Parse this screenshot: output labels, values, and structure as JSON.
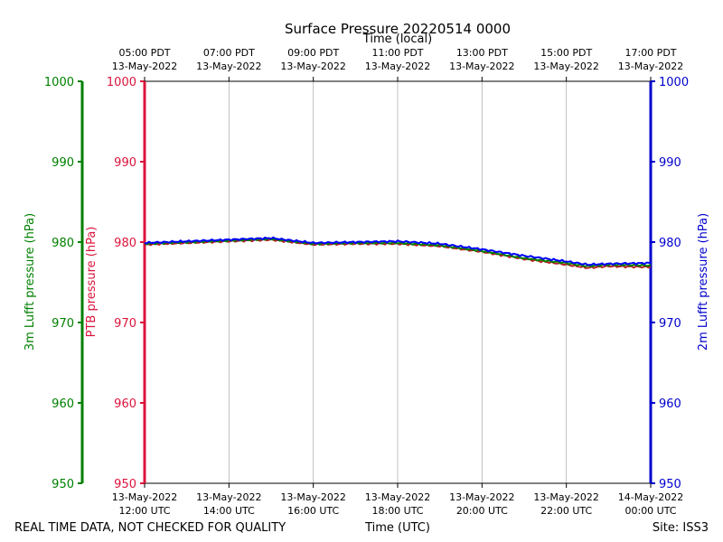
{
  "chart_data": {
    "type": "line",
    "title": "Surface Pressure 20220514 0000",
    "top_axis_label": "Time (local)",
    "xlabel": "Time (UTC)",
    "left_outer_label": "3m Lufft pressure (hPa)",
    "left_inner_label": "PTB pressure (hPa)",
    "right_label": "2m Lufft pressure (hPa)",
    "ylim": [
      950,
      1000
    ],
    "yticks": [
      950,
      960,
      970,
      980,
      990,
      1000
    ],
    "xlim_hours_utc": [
      12,
      24
    ],
    "grid": "vertical",
    "bottom_ticks": [
      {
        "hour": 12,
        "line1": "13-May-2022",
        "line2": "12:00 UTC"
      },
      {
        "hour": 14,
        "line1": "13-May-2022",
        "line2": "14:00 UTC"
      },
      {
        "hour": 16,
        "line1": "13-May-2022",
        "line2": "16:00 UTC"
      },
      {
        "hour": 18,
        "line1": "13-May-2022",
        "line2": "18:00 UTC"
      },
      {
        "hour": 20,
        "line1": "13-May-2022",
        "line2": "20:00 UTC"
      },
      {
        "hour": 22,
        "line1": "13-May-2022",
        "line2": "22:00 UTC"
      },
      {
        "hour": 24,
        "line1": "14-May-2022",
        "line2": "00:00 UTC"
      }
    ],
    "top_ticks": [
      {
        "hour": 12,
        "line1": "05:00 PDT",
        "line2": "13-May-2022"
      },
      {
        "hour": 14,
        "line1": "07:00 PDT",
        "line2": "13-May-2022"
      },
      {
        "hour": 16,
        "line1": "09:00 PDT",
        "line2": "13-May-2022"
      },
      {
        "hour": 18,
        "line1": "11:00 PDT",
        "line2": "13-May-2022"
      },
      {
        "hour": 20,
        "line1": "13:00 PDT",
        "line2": "13-May-2022"
      },
      {
        "hour": 22,
        "line1": "15:00 PDT",
        "line2": "13-May-2022"
      },
      {
        "hour": 24,
        "line1": "17:00 PDT",
        "line2": "13-May-2022"
      }
    ],
    "series": [
      {
        "color": "#b22222",
        "x": [
          12,
          13,
          14,
          15,
          16,
          17,
          18,
          19,
          20,
          21,
          22,
          22.5,
          23,
          24
        ],
        "y": [
          979.7,
          979.9,
          980.1,
          980.3,
          979.7,
          979.8,
          979.8,
          979.5,
          978.8,
          977.9,
          977.2,
          976.8,
          977.0,
          976.9
        ]
      },
      {
        "color": "#008000",
        "x": [
          12,
          13,
          14,
          15,
          16,
          17,
          18,
          19,
          20,
          21,
          22,
          22.5,
          23,
          24
        ],
        "y": [
          979.8,
          980.0,
          980.2,
          980.4,
          979.8,
          979.9,
          979.9,
          979.6,
          978.9,
          978.0,
          977.4,
          977.0,
          977.2,
          977.1
        ]
      },
      {
        "color": "#0000ff",
        "x": [
          12,
          13,
          14,
          15,
          16,
          17,
          18,
          19,
          20,
          21,
          22,
          22.5,
          23,
          24
        ],
        "y": [
          979.9,
          980.1,
          980.3,
          980.5,
          979.9,
          980.0,
          980.1,
          979.8,
          979.1,
          978.3,
          977.6,
          977.2,
          977.3,
          977.4
        ]
      }
    ]
  },
  "footer": {
    "disclaimer": "REAL TIME DATA, NOT CHECKED FOR QUALITY",
    "site": "Site: ISS3"
  },
  "colors": {
    "left_outer_axis": "#008000",
    "left_inner_axis": "#dc143c",
    "right_axis": "#0000cd",
    "grid": "#b0b0b0"
  }
}
